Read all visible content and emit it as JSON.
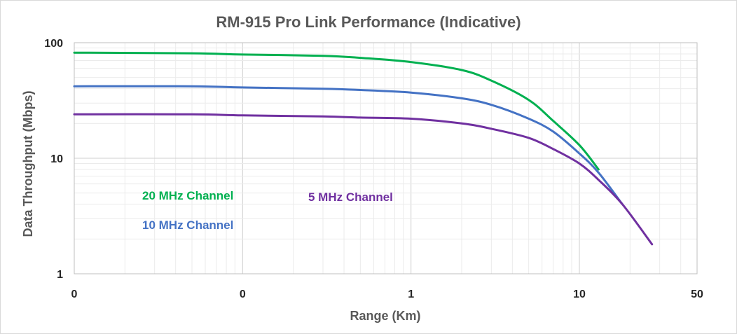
{
  "chart_data": {
    "type": "line",
    "title": "RM-915 Pro Link Performance (Indicative)",
    "xlabel": "Range (Km)",
    "ylabel": "Data Throughput (Mbps)",
    "x_scale": "log",
    "y_scale": "log",
    "xlim": [
      0.01,
      50
    ],
    "ylim": [
      1,
      100
    ],
    "x_tick_labels": [
      {
        "value": 0.01,
        "label": "0"
      },
      {
        "value": 0.1,
        "label": "0"
      },
      {
        "value": 1,
        "label": "1"
      },
      {
        "value": 10,
        "label": "10"
      },
      {
        "value": 50,
        "label": "50"
      }
    ],
    "y_tick_labels": [
      {
        "value": 100,
        "label": "100"
      },
      {
        "value": 10,
        "label": "10"
      },
      {
        "value": 1,
        "label": "1"
      }
    ],
    "grid": true,
    "series": [
      {
        "name": "20 MHz Channel",
        "color": "#00b050",
        "x": [
          0.01,
          0.05,
          0.1,
          0.3,
          0.5,
          1,
          2,
          3,
          5,
          7,
          10,
          13
        ],
        "y": [
          82,
          81,
          79,
          77,
          74,
          68,
          58,
          47,
          32,
          21,
          13,
          8
        ]
      },
      {
        "name": "10 MHz Channel",
        "color": "#4472c4",
        "x": [
          0.01,
          0.05,
          0.1,
          0.3,
          0.5,
          1,
          2,
          3,
          5,
          7,
          10,
          13,
          18
        ],
        "y": [
          42,
          42,
          41,
          40,
          39,
          37,
          33,
          29,
          22,
          17,
          11,
          7.5,
          4
        ]
      },
      {
        "name": "5 MHz Channel",
        "color": "#7030a0",
        "x": [
          0.01,
          0.05,
          0.1,
          0.3,
          0.5,
          1,
          2,
          3,
          5,
          7,
          10,
          13,
          18,
          27
        ],
        "y": [
          24,
          24,
          23.5,
          23,
          22.5,
          22,
          20,
          18,
          15,
          12,
          9,
          6.5,
          4,
          1.8
        ]
      }
    ]
  }
}
